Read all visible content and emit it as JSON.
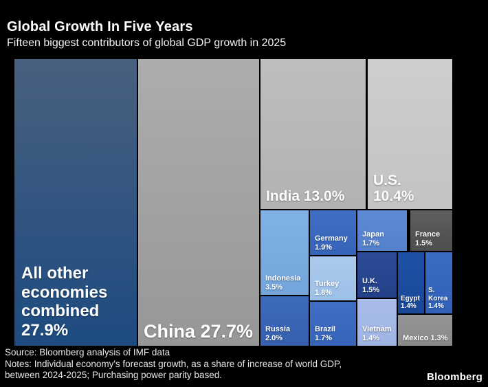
{
  "header": {
    "title": "Global Growth In Five Years",
    "subtitle": "Fifteen biggest contributors of global GDP growth in 2025"
  },
  "footer": {
    "source": "Source: Bloomberg analysis of IMF data",
    "notes_line1": "Notes: Individual economy's forecast growth, as a share of increase of world GDP,",
    "notes_line2": "between 2024-2025; Purchasing power parity based.",
    "logo": "Bloomberg"
  },
  "chart_data": {
    "type": "treemap",
    "title": "Global Growth In Five Years",
    "subtitle": "Fifteen biggest contributors of global GDP growth in 2025",
    "unit": "% share of increase of world GDP, 2024-2025, PPP based",
    "items": [
      {
        "label": "All other economies combined",
        "value": 27.9,
        "color": "#2a5286"
      },
      {
        "label": "China",
        "value": 27.7,
        "color": "#a2a2a2"
      },
      {
        "label": "India",
        "value": 13.0,
        "color": "#b8b8b8"
      },
      {
        "label": "U.S.",
        "value": 10.4,
        "color": "#c9c9c9"
      },
      {
        "label": "Indonesia",
        "value": 3.5,
        "color": "#7aacdf"
      },
      {
        "label": "Russia",
        "value": 2.0,
        "color": "#3a66b6"
      },
      {
        "label": "Germany",
        "value": 1.9,
        "color": "#3b6ac0"
      },
      {
        "label": "Turkey",
        "value": 1.8,
        "color": "#a5c6ea"
      },
      {
        "label": "Japan",
        "value": 1.7,
        "color": "#5a85d1"
      },
      {
        "label": "Brazil",
        "value": 1.7,
        "color": "#3b6ac0"
      },
      {
        "label": "U.K.",
        "value": 1.5,
        "color": "#28488f"
      },
      {
        "label": "France",
        "value": 1.5,
        "color": "#575757"
      },
      {
        "label": "Vietnam",
        "value": 1.4,
        "color": "#a5b9e6"
      },
      {
        "label": "Egypt",
        "value": 1.4,
        "color": "#1c4da0"
      },
      {
        "label": "S. Korea",
        "value": 1.4,
        "color": "#3667bd"
      },
      {
        "label": "Mexico",
        "value": 1.3,
        "color": "#8f8f8f"
      }
    ]
  },
  "tiles": {
    "all_other": {
      "lines": [
        "All other",
        "economies",
        "combined",
        "27.9%"
      ],
      "top": "#49607f",
      "bottom": "#1d4b80"
    },
    "china": {
      "lines": [
        "China 27.7%"
      ],
      "top": "#adadad",
      "bottom": "#979797"
    },
    "india": {
      "lines": [
        "India 13.0%"
      ],
      "top": "#bebebe",
      "bottom": "#b2b2b2"
    },
    "us": {
      "lines": [
        "U.S.",
        "10.4%"
      ],
      "top": "#cecece",
      "bottom": "#c3c3c3"
    },
    "indonesia": {
      "lines": [
        "Indonesia",
        "3.5%"
      ],
      "top": "#80b2e5",
      "bottom": "#73a5dc"
    },
    "russia": {
      "lines": [
        "Russia",
        "2.0%"
      ],
      "top": "#3e6abb",
      "bottom": "#3560ae"
    },
    "germany": {
      "lines": [
        "Germany",
        "1.9%"
      ],
      "top": "#3f6ec4",
      "bottom": "#3564b9"
    },
    "turkey": {
      "lines": [
        "Turkey",
        "1.8%"
      ],
      "top": "#abcaed",
      "bottom": "#9dc0e7"
    },
    "brazil": {
      "lines": [
        "Brazil",
        "1.7%"
      ],
      "top": "#3f6ec4",
      "bottom": "#3564b9"
    },
    "japan": {
      "lines": [
        "Japan",
        "1.7%"
      ],
      "top": "#5f8ad4",
      "bottom": "#5480cc"
    },
    "uk": {
      "lines": [
        "U.K.",
        "1.5%"
      ],
      "top": "#2c4c97",
      "bottom": "#234189"
    },
    "vietnam": {
      "lines": [
        "Vietnam",
        "1.4%"
      ],
      "top": "#aabde9",
      "bottom": "#9fb4e3"
    },
    "france": {
      "lines": [
        "France",
        "1.5%"
      ],
      "top": "#5e5e5e",
      "bottom": "#4e4e4e"
    },
    "egypt": {
      "lines": [
        "Egypt",
        "1.4%"
      ],
      "top": "#1e51a6",
      "bottom": "#1a4898"
    },
    "skorea": {
      "lines": [
        "S.",
        "Korea",
        "1.4%"
      ],
      "top": "#3a6cc3",
      "bottom": "#3161b7"
    },
    "mexico": {
      "lines": [
        "Mexico 1.3%"
      ],
      "top": "#959595",
      "bottom": "#898989"
    }
  }
}
